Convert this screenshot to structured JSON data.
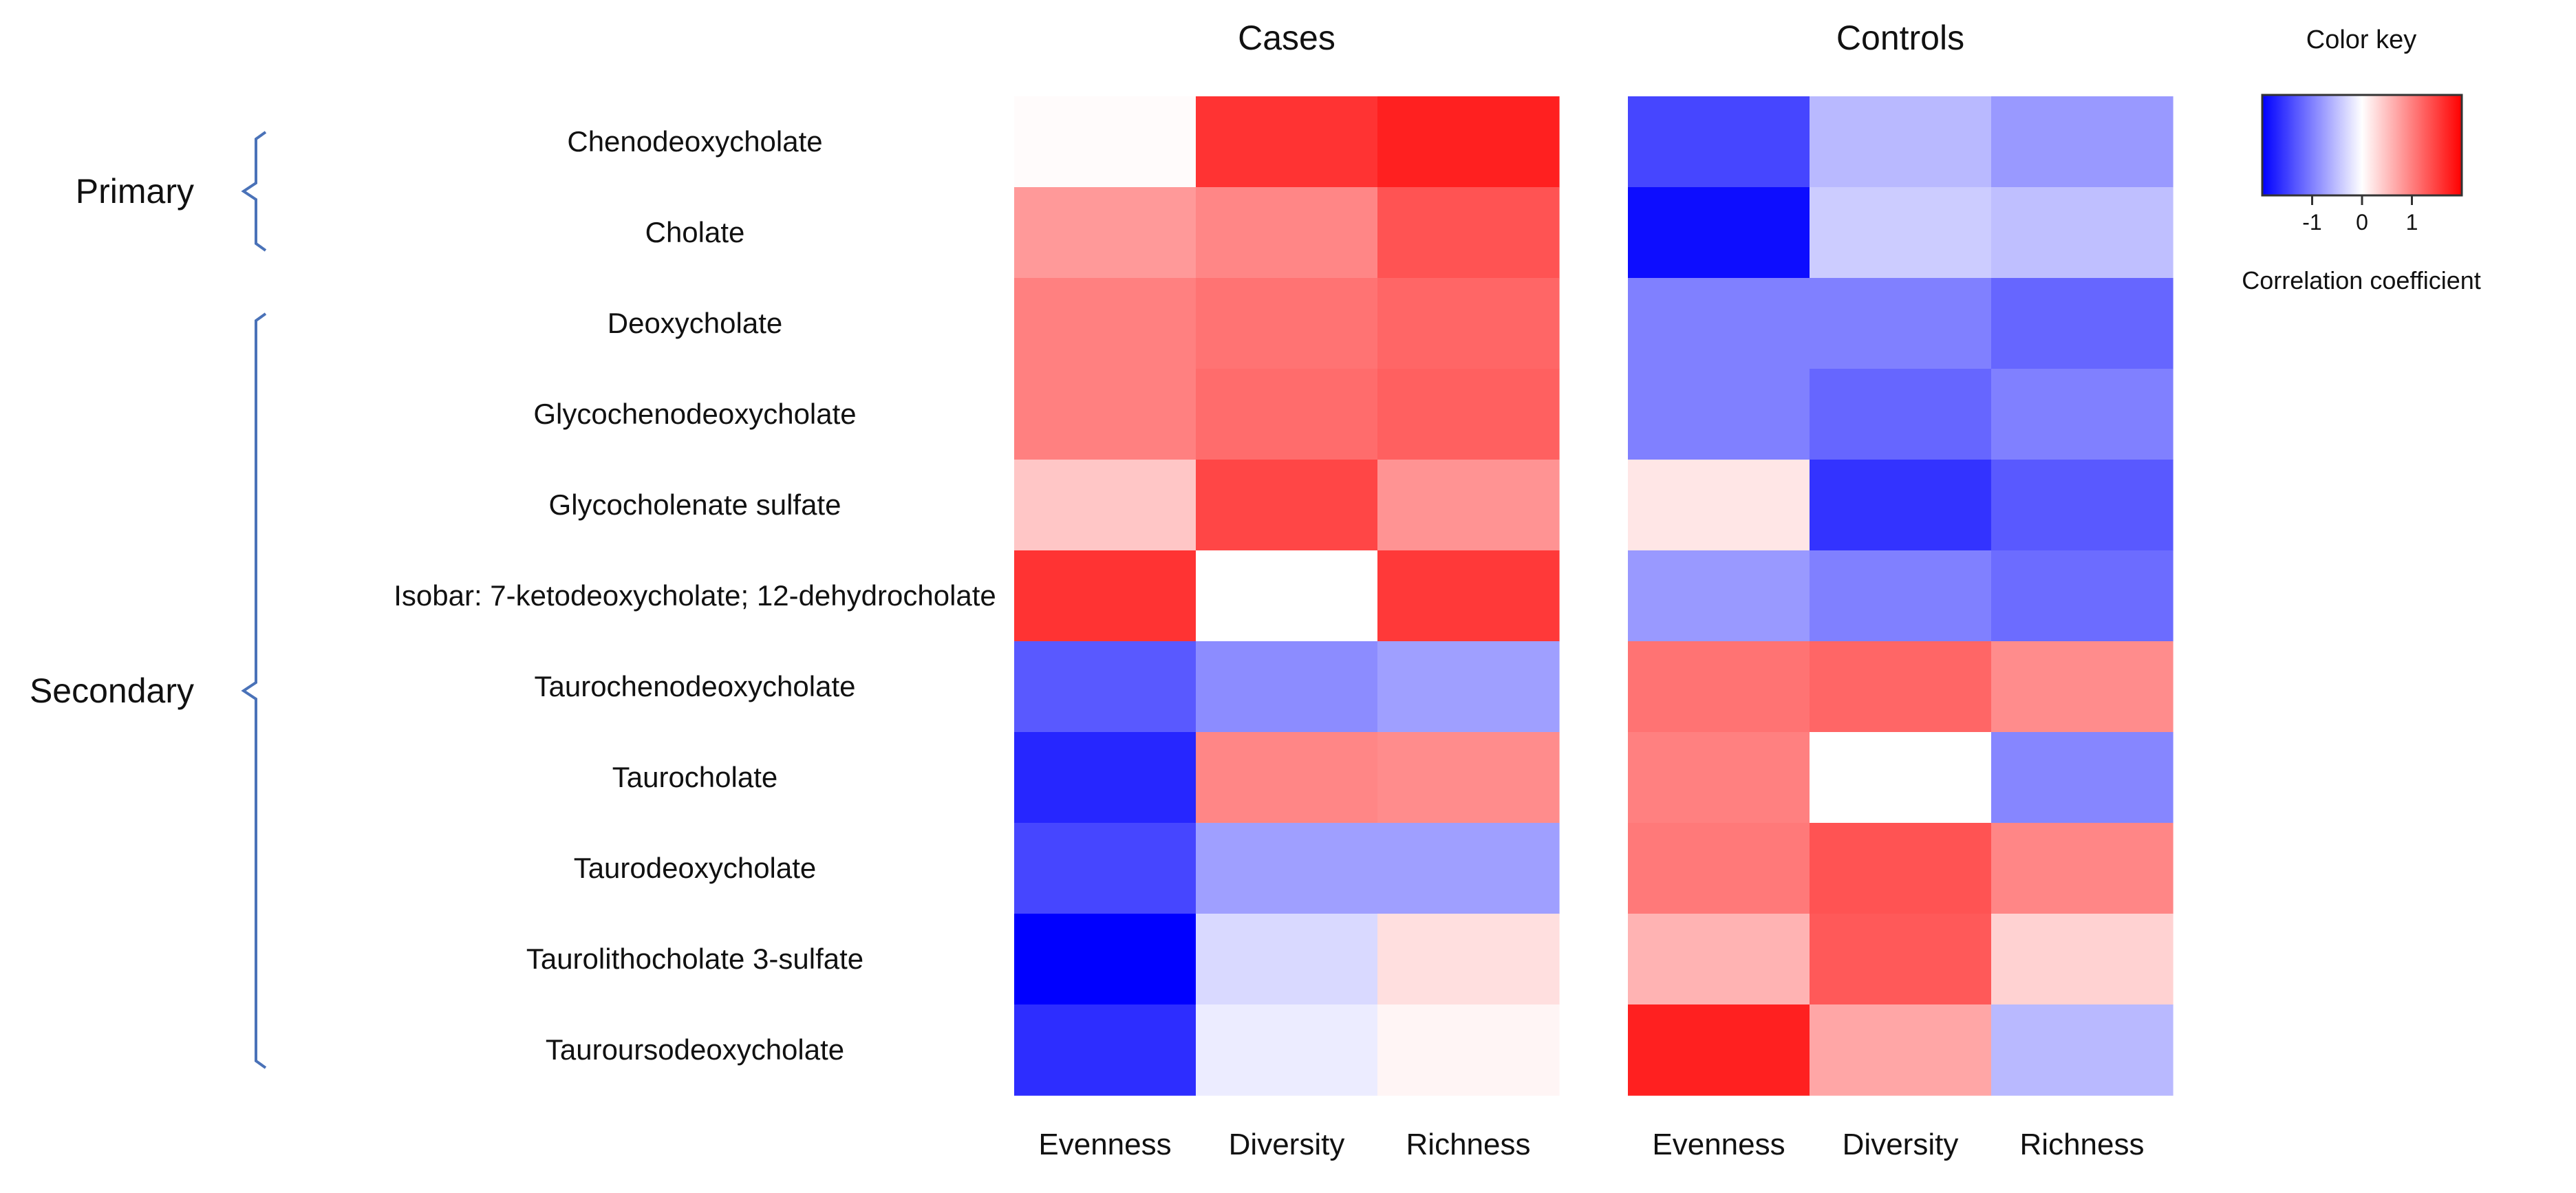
{
  "chart_data": {
    "type": "heatmap",
    "panels": [
      {
        "title": "Cases",
        "columns": [
          "Evenness",
          "Diversity",
          "Richness"
        ],
        "values": [
          [
            0.03,
            1.6,
            1.75
          ],
          [
            0.8,
            0.95,
            1.35
          ],
          [
            1.0,
            1.1,
            1.2
          ],
          [
            1.0,
            1.15,
            1.25
          ],
          [
            0.45,
            1.45,
            0.85
          ],
          [
            1.6,
            0.0,
            1.55
          ],
          [
            -1.3,
            -0.9,
            -0.75
          ],
          [
            -1.7,
            0.95,
            0.9
          ],
          [
            -1.45,
            -0.75,
            -0.75
          ],
          [
            -2.0,
            -0.3,
            0.25
          ],
          [
            -1.65,
            -0.15,
            0.08
          ]
        ]
      },
      {
        "title": "Controls",
        "columns": [
          "Evenness",
          "Diversity",
          "Richness"
        ],
        "values": [
          [
            -1.45,
            -0.55,
            -0.8
          ],
          [
            -1.9,
            -0.4,
            -0.5
          ],
          [
            -1.0,
            -1.0,
            -1.2
          ],
          [
            -1.0,
            -1.2,
            -1.0
          ],
          [
            0.2,
            -1.6,
            -1.3
          ],
          [
            -0.8,
            -1.0,
            -1.15
          ],
          [
            1.1,
            1.2,
            0.9
          ],
          [
            1.0,
            0.0,
            -0.95
          ],
          [
            1.05,
            1.35,
            0.95
          ],
          [
            0.6,
            1.3,
            0.35
          ],
          [
            1.75,
            0.7,
            -0.55
          ]
        ]
      }
    ],
    "rows": [
      "Chenodeoxycholate",
      "Cholate",
      "Deoxycholate",
      "Glycochenodeoxycholate",
      "Glycocholenate sulfate",
      "Isobar: 7-ketodeoxycholate; 12-dehydrocholate",
      "Taurochenodeoxycholate",
      "Taurocholate",
      "Taurodeoxycholate",
      "Taurolithocholate 3-sulfate",
      "Tauroursodeoxycholate"
    ],
    "row_groups": [
      {
        "label": "Primary",
        "start": 0,
        "end": 1
      },
      {
        "label": "Secondary",
        "start": 2,
        "end": 10
      }
    ],
    "color_key": {
      "title": "Color key",
      "label": "Correlation coefficient",
      "range": [
        -2,
        2
      ],
      "ticks": [
        -1,
        0,
        1
      ],
      "tick_labels": [
        "-1",
        "0",
        "1"
      ],
      "colors": {
        "low": "#0000ff",
        "mid": "#ffffff",
        "high": "#ff0000"
      }
    }
  }
}
